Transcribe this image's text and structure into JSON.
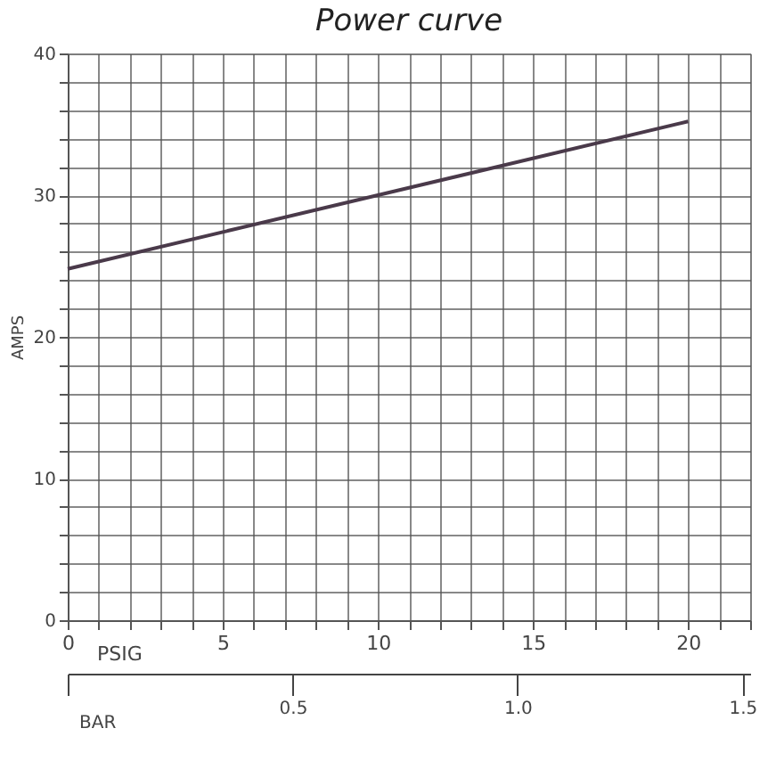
{
  "chart_data": {
    "type": "line",
    "title": "Power curve",
    "xlabel": "PSIG",
    "ylabel": "AMPS",
    "x2label": "BAR",
    "series": [
      {
        "color": "#4a3a4a",
        "x": [
          0,
          20
        ],
        "values": [
          24.8,
          35.2
        ]
      }
    ],
    "xlim": [
      0,
      22
    ],
    "xticks": [
      0,
      5,
      10,
      15,
      20
    ],
    "ylim": [
      0,
      40
    ],
    "yticks": [
      0,
      10,
      20,
      30,
      40
    ],
    "x2lim": [
      0,
      1.517
    ],
    "x2ticks": [
      {
        "value": 0,
        "label": null
      },
      0.5,
      {
        "value": 1.0,
        "label": "1.0"
      },
      1.5
    ],
    "grid": true,
    "marker": "none",
    "line_style": "solid"
  }
}
